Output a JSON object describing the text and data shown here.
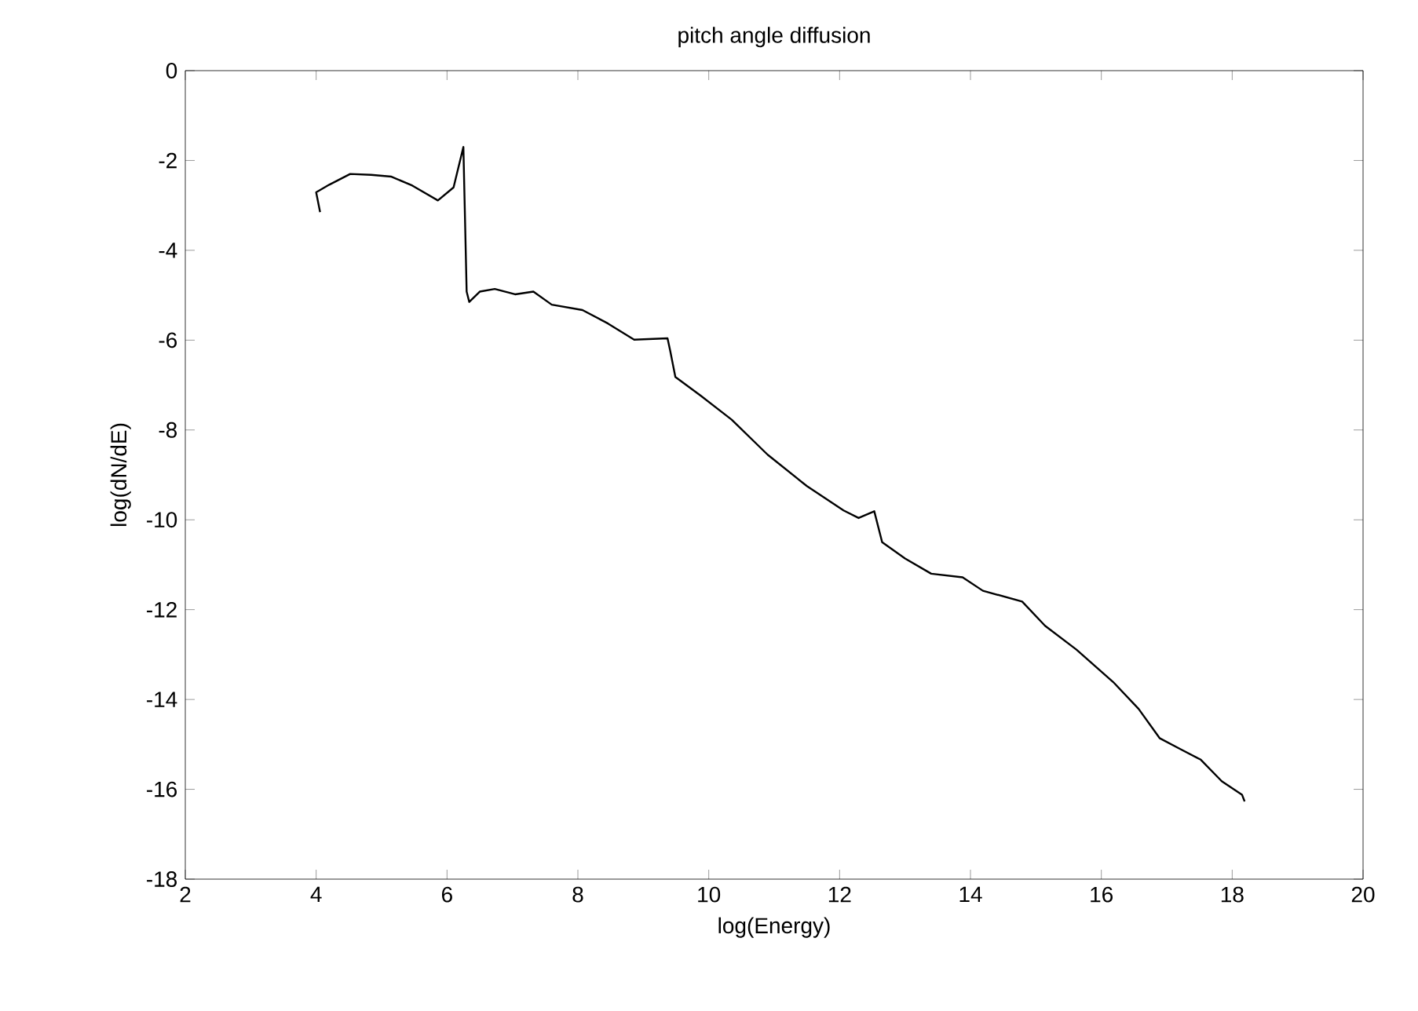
{
  "chart_data": {
    "type": "line",
    "title": "pitch angle diffusion",
    "xlabel": "log(Energy)",
    "ylabel": "log(dN/dE)",
    "xlim": [
      2,
      20
    ],
    "ylim": [
      -18,
      0
    ],
    "xticks": [
      2,
      4,
      6,
      8,
      10,
      12,
      14,
      16,
      18,
      20
    ],
    "yticks": [
      -18,
      -16,
      -14,
      -12,
      -10,
      -8,
      -6,
      -4,
      -2,
      0
    ],
    "marker": "none",
    "line_style": "solid",
    "series": [
      {
        "color": "#000000",
        "x": [
          4.06,
          4.0,
          4.2,
          4.52,
          4.84,
          5.15,
          5.47,
          5.86,
          6.1,
          6.25,
          6.3,
          6.34,
          6.5,
          6.73,
          7.04,
          7.32,
          7.6,
          8.07,
          8.46,
          8.86,
          9.37,
          9.41,
          9.49,
          9.88,
          10.35,
          10.9,
          11.5,
          12.06,
          12.29,
          12.53,
          12.65,
          13.0,
          13.4,
          13.88,
          14.19,
          14.79,
          15.14,
          15.62,
          16.18,
          16.57,
          16.89,
          17.2,
          17.52,
          17.84,
          18.15,
          18.19
        ],
        "values": [
          -3.15,
          -2.71,
          -2.54,
          -2.3,
          -2.32,
          -2.36,
          -2.56,
          -2.89,
          -2.6,
          -1.7,
          -4.92,
          -5.15,
          -4.92,
          -4.86,
          -4.98,
          -4.92,
          -5.21,
          -5.33,
          -5.63,
          -5.99,
          -5.96,
          -6.23,
          -6.82,
          -7.24,
          -7.77,
          -8.55,
          -9.25,
          -9.79,
          -9.96,
          -9.81,
          -10.5,
          -10.86,
          -11.2,
          -11.28,
          -11.58,
          -11.82,
          -12.36,
          -12.89,
          -13.61,
          -14.21,
          -14.86,
          -15.1,
          -15.34,
          -15.82,
          -16.12,
          -16.27
        ]
      }
    ]
  }
}
